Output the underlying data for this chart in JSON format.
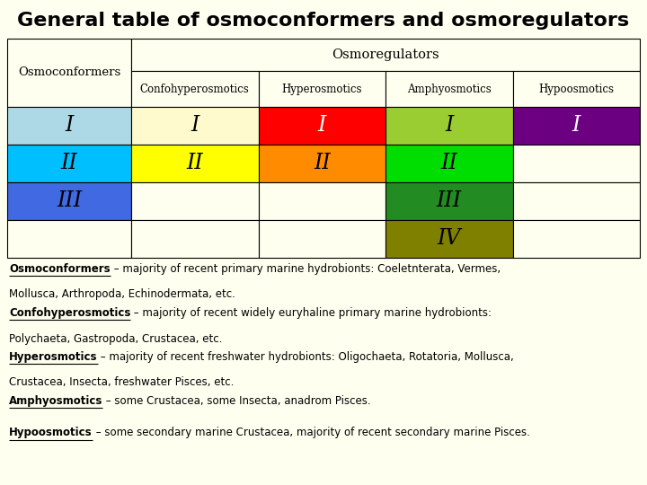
{
  "title": "General table of osmoconformers and osmoregulators",
  "background_color": "#FFFFF0",
  "col_headers": [
    "Confohyperosmotics",
    "Hyperosmotics",
    "Amphyosmotics",
    "Hypoosmotics"
  ],
  "osmoregulators_label": "Osmoregulators",
  "osmoconformers_label": "Osmoconformers",
  "rows": [
    {
      "row_label": "I",
      "row_color": "#ADD8E6",
      "cells": [
        {
          "text": "I",
          "color": "#FFFACD"
        },
        {
          "text": "I",
          "color": "#FF0000"
        },
        {
          "text": "I",
          "color": "#9ACD32"
        },
        {
          "text": "I",
          "color": "#6B0080"
        }
      ]
    },
    {
      "row_label": "II",
      "row_color": "#00BFFF",
      "cells": [
        {
          "text": "II",
          "color": "#FFFF00"
        },
        {
          "text": "II",
          "color": "#FF8C00"
        },
        {
          "text": "II",
          "color": "#00DD00"
        },
        {
          "text": "",
          "color": "#FFFFF0"
        }
      ]
    },
    {
      "row_label": "III",
      "row_color": "#4169E1",
      "cells": [
        {
          "text": "",
          "color": "#FFFFF0"
        },
        {
          "text": "",
          "color": "#FFFFF0"
        },
        {
          "text": "III",
          "color": "#228B22"
        },
        {
          "text": "",
          "color": "#FFFFF0"
        }
      ]
    },
    {
      "row_label": "",
      "row_color": "#FFFFF0",
      "cells": [
        {
          "text": "",
          "color": "#FFFFF0"
        },
        {
          "text": "",
          "color": "#FFFFF0"
        },
        {
          "text": "IV",
          "color": "#808000"
        },
        {
          "text": "",
          "color": "#FFFFF0"
        }
      ]
    }
  ],
  "annotations": [
    {
      "underline": "Osmoconformers",
      "rest": " – majority of recent primary marine hydrobionts: Coeletnterata, Vermes,",
      "rest2": "Mollusca, Arthropoda, Echinodermata, etc."
    },
    {
      "underline": "Confohyperosmotics",
      "rest": " – majority of recent widely euryhaline primary marine hydrobionts:",
      "rest2": "Polychaeta, Gastropoda, Crustacea, etc."
    },
    {
      "underline": "Hyperosmotics",
      "rest": " – majority of recent freshwater hydrobionts: Oligochaeta, Rotatoria, Mollusca,",
      "rest2": "Crustacea, Insecta, freshwater Pisces, etc."
    },
    {
      "underline": "Amphyosmotics",
      "rest": " – some Crustacea, some Insecta, anadrom Pisces.",
      "rest2": ""
    },
    {
      "underline": "Hypoosmotics",
      "rest": " – some secondary marine Crustacea, majority of recent secondary marine Pisces.",
      "rest2": ""
    }
  ],
  "ann_fontsize": 8.5,
  "title_fontsize": 16
}
